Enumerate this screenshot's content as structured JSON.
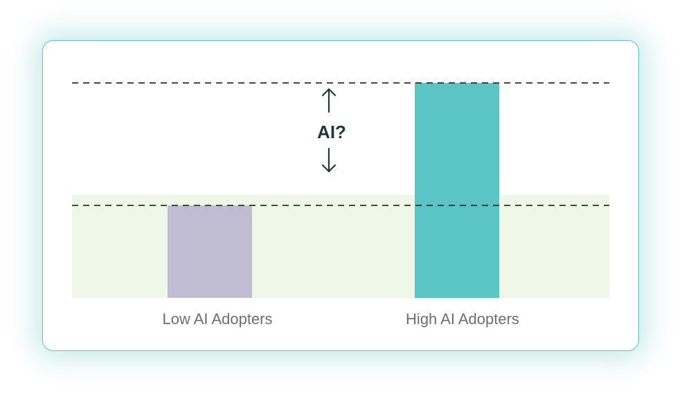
{
  "chart_data": {
    "type": "bar",
    "categories": [
      "Low AI Adopters",
      "High AI Adopters"
    ],
    "values": [
      43,
      100
    ],
    "ylim": [
      0,
      100
    ],
    "reference_lines": [
      43,
      100
    ],
    "baseline_band": [
      0,
      48
    ],
    "annotation": "AI?",
    "grid": false,
    "legend": "none",
    "colors": {
      "bars": [
        "#c0bcd2",
        "#5bc5c5"
      ],
      "band": "#eef7e8",
      "reference_line": "#2a2a2a",
      "annotation": "#1f3a36",
      "tick_label": "#6e6e6e",
      "card_border": "#5cc4c4"
    }
  }
}
